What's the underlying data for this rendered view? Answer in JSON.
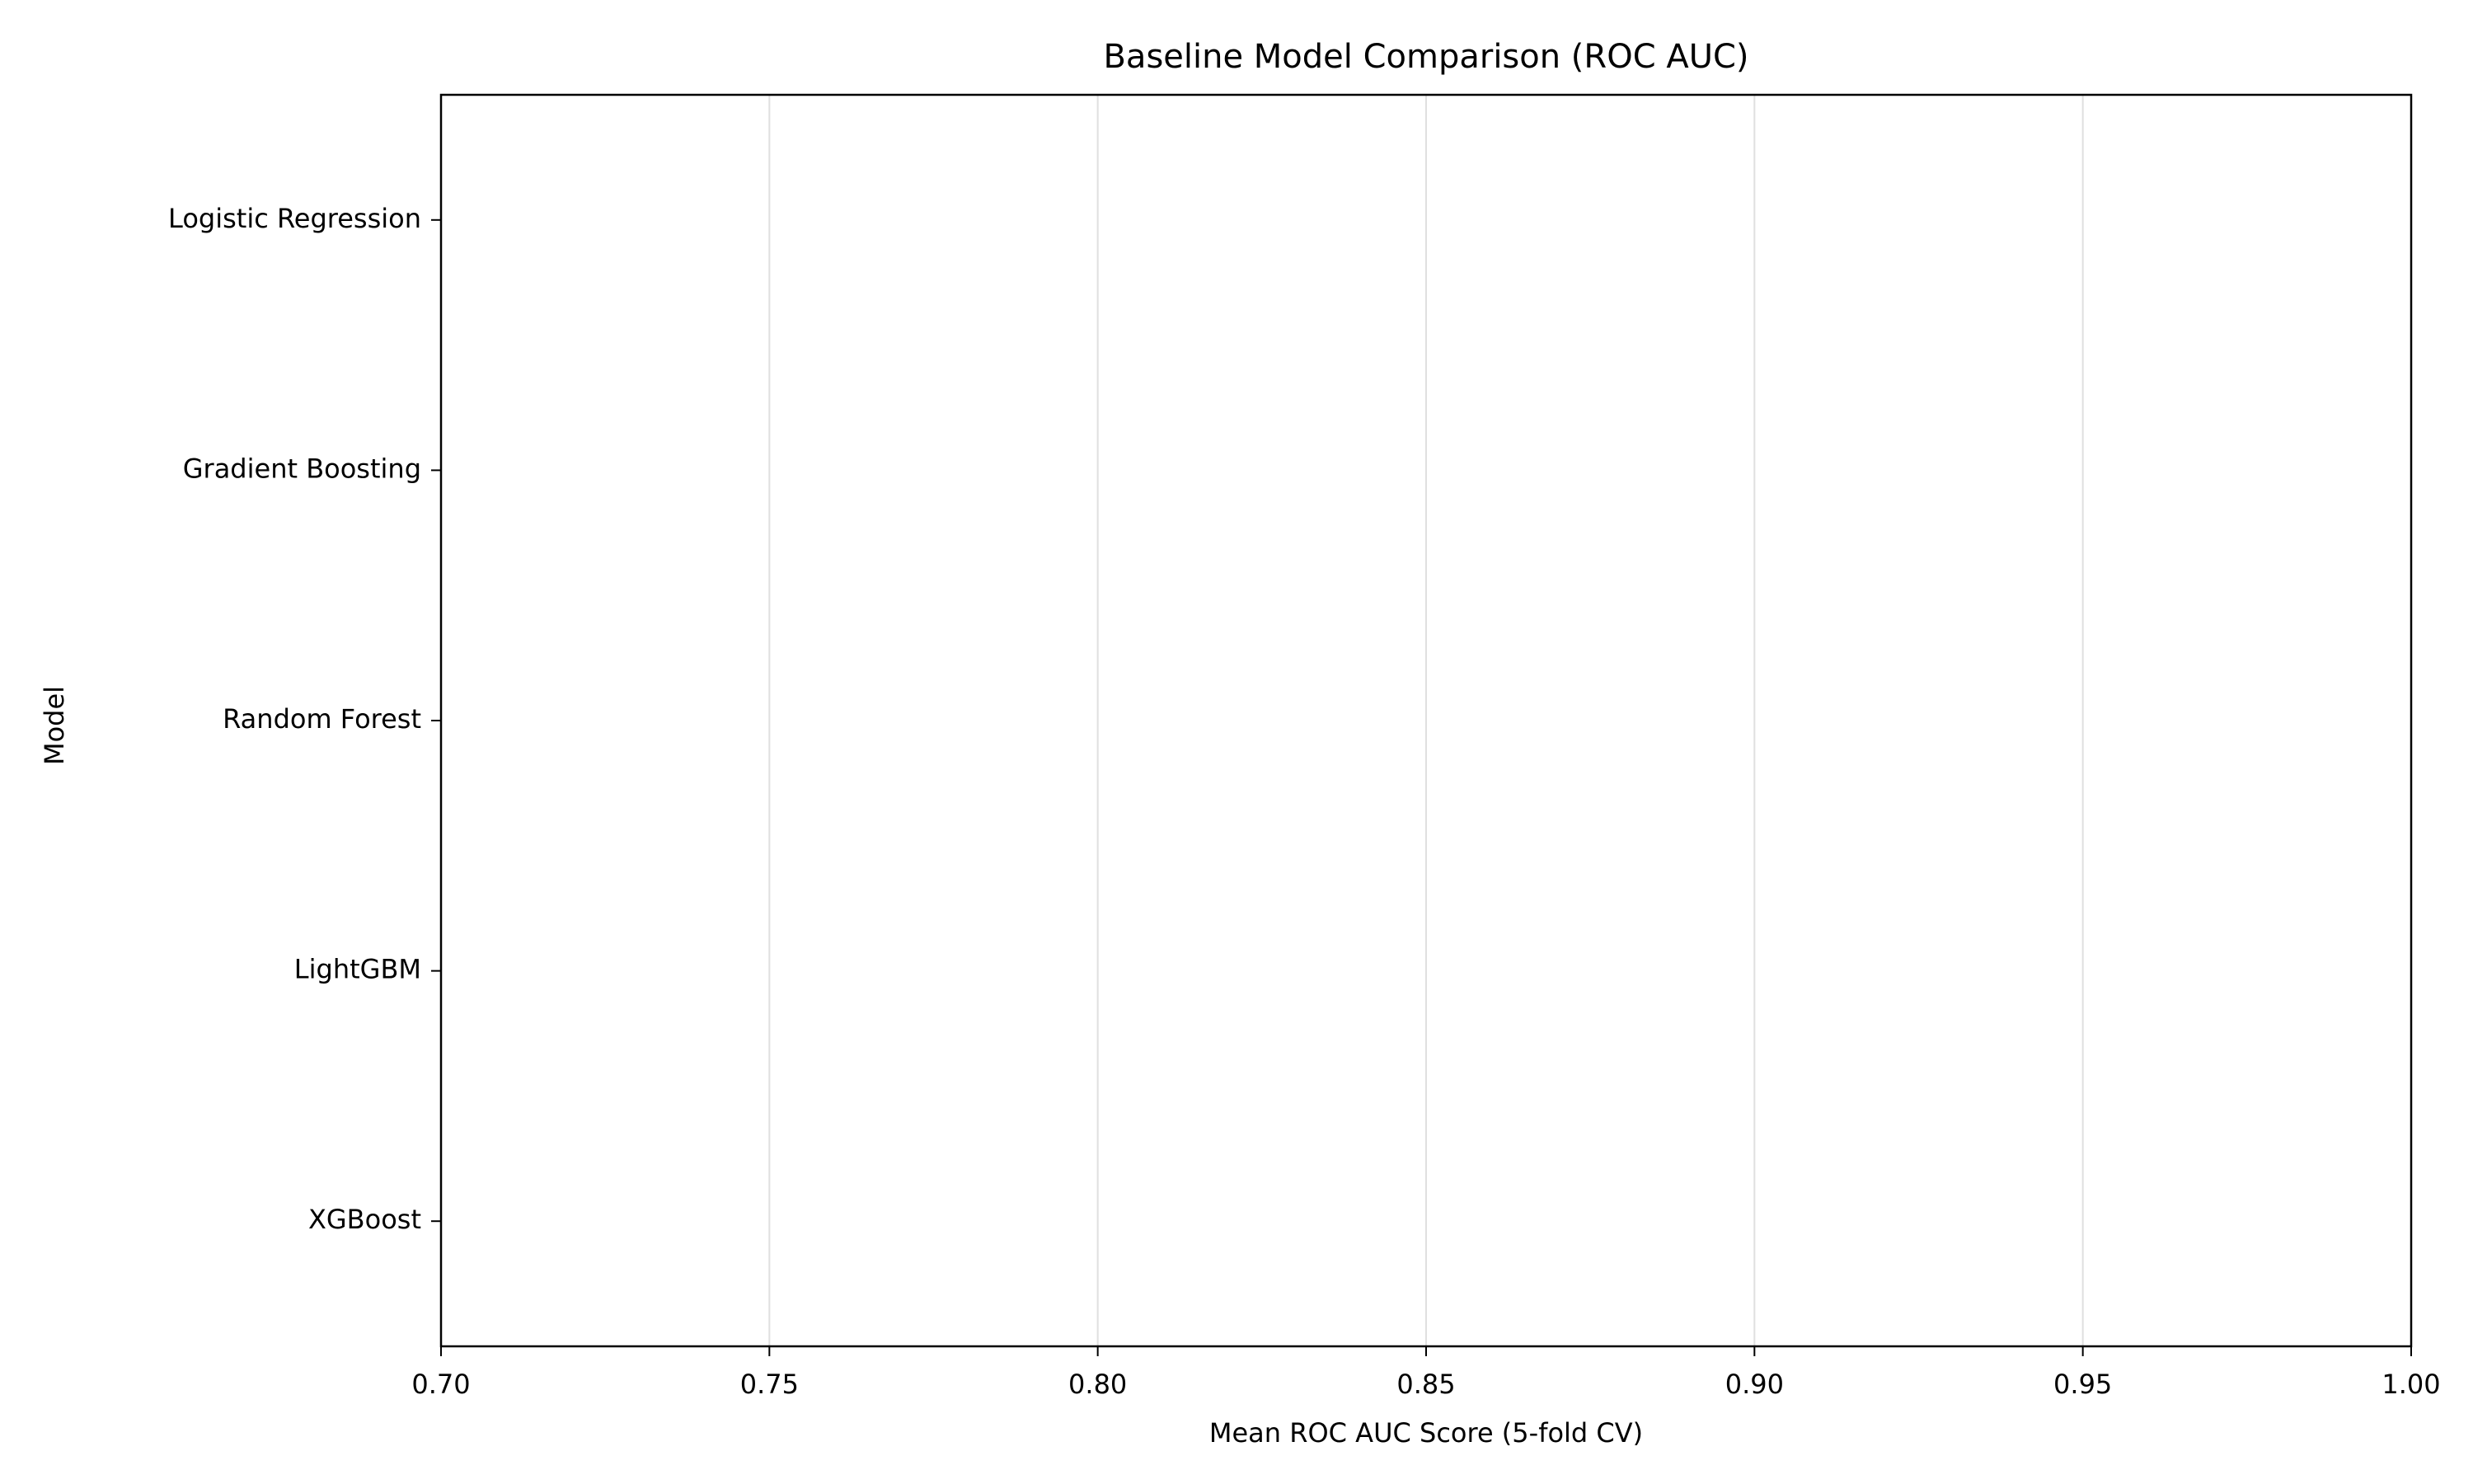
{
  "chart_data": {
    "type": "barh",
    "title": "Baseline Model Comparison (ROC AUC)",
    "xlabel": "Mean ROC AUC Score (5-fold CV)",
    "ylabel": "Model",
    "categories": [
      "Logistic Regression",
      "Gradient Boosting",
      "Random Forest",
      "LightGBM",
      "XGBoost"
    ],
    "values": [
      null,
      null,
      null,
      null,
      null
    ],
    "color": "#1f77b4",
    "xlim": [
      0.7,
      1.0
    ],
    "xticks": [
      {
        "value": 0.7,
        "label": "0.70"
      },
      {
        "value": 0.75,
        "label": "0.75"
      },
      {
        "value": 0.8,
        "label": "0.80"
      },
      {
        "value": 0.85,
        "label": "0.85"
      },
      {
        "value": 0.9,
        "label": "0.90"
      },
      {
        "value": 0.95,
        "label": "0.95"
      },
      {
        "value": 1.0,
        "label": "1.00"
      }
    ],
    "grid": true
  }
}
